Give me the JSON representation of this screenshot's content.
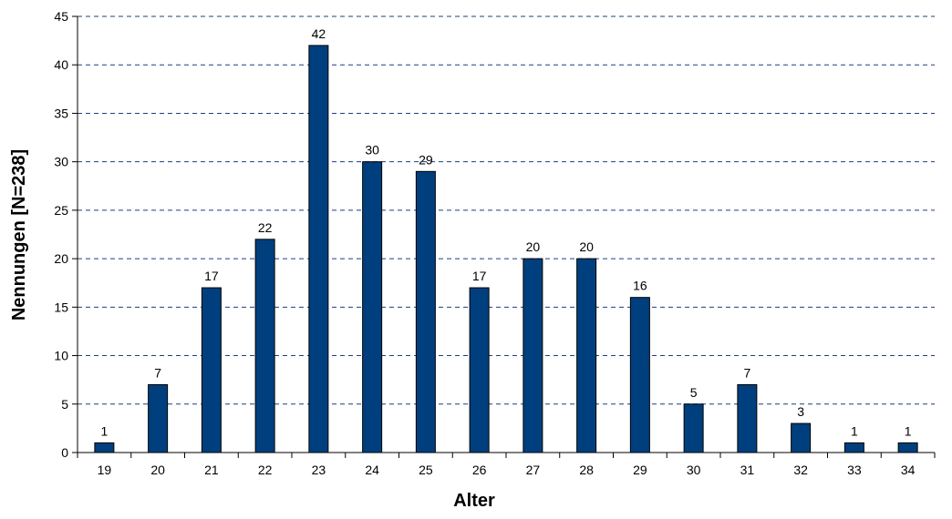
{
  "chart_data": {
    "type": "bar",
    "title": "",
    "xlabel": "Alter",
    "ylabel": "Nennungen [N=238]",
    "categories": [
      "19",
      "20",
      "21",
      "22",
      "23",
      "24",
      "25",
      "26",
      "27",
      "28",
      "29",
      "30",
      "31",
      "32",
      "33",
      "34"
    ],
    "values": [
      1,
      7,
      17,
      22,
      42,
      30,
      29,
      17,
      20,
      20,
      16,
      5,
      7,
      3,
      1,
      1
    ],
    "ylim": [
      0,
      45
    ],
    "yticks": [
      "0",
      "5",
      "10",
      "15",
      "20",
      "25",
      "30",
      "35",
      "40",
      "45"
    ],
    "grid": "horizontal-dashed",
    "legend": "none",
    "colors": {
      "bar": "#003F7D",
      "bar_edge": "#000000",
      "grid": "#1F3F7F",
      "axis": "#000000"
    }
  }
}
